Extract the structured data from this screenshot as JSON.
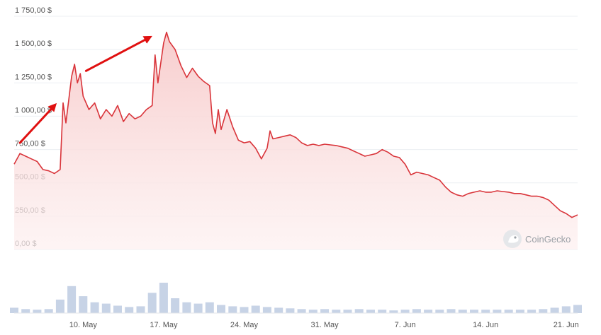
{
  "chart_data": {
    "type": "line",
    "title": "",
    "xlabel": "",
    "ylabel": "",
    "x_range_days": [
      "2021-05-04",
      "2021-06-22"
    ],
    "ylim": [
      0,
      1750
    ],
    "y_ticks": [
      0,
      250,
      500,
      750,
      1000,
      1250,
      1500,
      1750
    ],
    "y_tick_labels": [
      "0,00 $",
      "250,00 $",
      "500,00 $",
      "750,00 $",
      "1 000,00 $",
      "1 250,00 $",
      "1 500,00 $",
      "1 750,00 $"
    ],
    "x_ticks": [
      "2021-05-10",
      "2021-05-17",
      "2021-05-24",
      "2021-05-31",
      "2021-06-07",
      "2021-06-14",
      "2021-06-21"
    ],
    "x_tick_labels": [
      "10. May",
      "17. May",
      "24. May",
      "31. May",
      "7. Jun",
      "14. Jun",
      "21. Jun"
    ],
    "grid": true,
    "line_color": "#d9343a",
    "fill_color": "#f9dcdc",
    "volume_color": "#c7d3e6",
    "series": [
      {
        "values": [
          [
            "2021-05-04",
            640
          ],
          [
            "2021-05-04 12:00",
            720
          ],
          [
            "2021-05-05",
            700
          ],
          [
            "2021-05-05 12:00",
            680
          ],
          [
            "2021-05-06",
            660
          ],
          [
            "2021-05-06 12:00",
            600
          ],
          [
            "2021-05-07",
            590
          ],
          [
            "2021-05-07 12:00",
            570
          ],
          [
            "2021-05-08",
            600
          ],
          [
            "2021-05-08 06:00",
            1100
          ],
          [
            "2021-05-08 12:00",
            950
          ],
          [
            "2021-05-09",
            1300
          ],
          [
            "2021-05-09 06:00",
            1390
          ],
          [
            "2021-05-09 12:00",
            1250
          ],
          [
            "2021-05-09 18:00",
            1320
          ],
          [
            "2021-05-10",
            1150
          ],
          [
            "2021-05-10 12:00",
            1050
          ],
          [
            "2021-05-11",
            1100
          ],
          [
            "2021-05-11 12:00",
            980
          ],
          [
            "2021-05-12",
            1050
          ],
          [
            "2021-05-12 12:00",
            1000
          ],
          [
            "2021-05-13",
            1080
          ],
          [
            "2021-05-13 12:00",
            960
          ],
          [
            "2021-05-14",
            1020
          ],
          [
            "2021-05-14 12:00",
            980
          ],
          [
            "2021-05-15",
            1000
          ],
          [
            "2021-05-15 12:00",
            1050
          ],
          [
            "2021-05-16",
            1080
          ],
          [
            "2021-05-16 06:00",
            1460
          ],
          [
            "2021-05-16 12:00",
            1250
          ],
          [
            "2021-05-17",
            1550
          ],
          [
            "2021-05-17 06:00",
            1630
          ],
          [
            "2021-05-17 12:00",
            1560
          ],
          [
            "2021-05-18",
            1500
          ],
          [
            "2021-05-18 12:00",
            1380
          ],
          [
            "2021-05-19",
            1290
          ],
          [
            "2021-05-19 12:00",
            1360
          ],
          [
            "2021-05-20",
            1300
          ],
          [
            "2021-05-20 12:00",
            1260
          ],
          [
            "2021-05-21",
            1230
          ],
          [
            "2021-05-21 06:00",
            950
          ],
          [
            "2021-05-21 12:00",
            870
          ],
          [
            "2021-05-21 18:00",
            1050
          ],
          [
            "2021-05-22",
            900
          ],
          [
            "2021-05-22 12:00",
            1050
          ],
          [
            "2021-05-23",
            920
          ],
          [
            "2021-05-23 12:00",
            820
          ],
          [
            "2021-05-24",
            800
          ],
          [
            "2021-05-24 12:00",
            810
          ],
          [
            "2021-05-25",
            760
          ],
          [
            "2021-05-25 12:00",
            680
          ],
          [
            "2021-05-26",
            760
          ],
          [
            "2021-05-26 06:00",
            890
          ],
          [
            "2021-05-26 12:00",
            830
          ],
          [
            "2021-05-27",
            840
          ],
          [
            "2021-05-27 12:00",
            850
          ],
          [
            "2021-05-28",
            860
          ],
          [
            "2021-05-28 12:00",
            840
          ],
          [
            "2021-05-29",
            800
          ],
          [
            "2021-05-29 12:00",
            780
          ],
          [
            "2021-05-30",
            790
          ],
          [
            "2021-05-30 12:00",
            780
          ],
          [
            "2021-05-31",
            790
          ],
          [
            "2021-05-31 12:00",
            785
          ],
          [
            "2021-06-01",
            780
          ],
          [
            "2021-06-01 12:00",
            770
          ],
          [
            "2021-06-02",
            760
          ],
          [
            "2021-06-02 12:00",
            740
          ],
          [
            "2021-06-03",
            720
          ],
          [
            "2021-06-03 12:00",
            700
          ],
          [
            "2021-06-04",
            710
          ],
          [
            "2021-06-04 12:00",
            720
          ],
          [
            "2021-06-05",
            750
          ],
          [
            "2021-06-05 12:00",
            730
          ],
          [
            "2021-06-06",
            700
          ],
          [
            "2021-06-06 12:00",
            690
          ],
          [
            "2021-06-07",
            640
          ],
          [
            "2021-06-07 12:00",
            560
          ],
          [
            "2021-06-08",
            580
          ],
          [
            "2021-06-08 12:00",
            570
          ],
          [
            "2021-06-09",
            560
          ],
          [
            "2021-06-09 12:00",
            540
          ],
          [
            "2021-06-10",
            520
          ],
          [
            "2021-06-10 12:00",
            470
          ],
          [
            "2021-06-11",
            430
          ],
          [
            "2021-06-11 12:00",
            410
          ],
          [
            "2021-06-12",
            400
          ],
          [
            "2021-06-12 12:00",
            420
          ],
          [
            "2021-06-13",
            430
          ],
          [
            "2021-06-13 12:00",
            440
          ],
          [
            "2021-06-14",
            430
          ],
          [
            "2021-06-14 12:00",
            430
          ],
          [
            "2021-06-15",
            440
          ],
          [
            "2021-06-15 12:00",
            435
          ],
          [
            "2021-06-16",
            430
          ],
          [
            "2021-06-16 12:00",
            420
          ],
          [
            "2021-06-17",
            420
          ],
          [
            "2021-06-17 12:00",
            410
          ],
          [
            "2021-06-18",
            400
          ],
          [
            "2021-06-18 12:00",
            400
          ],
          [
            "2021-06-19",
            390
          ],
          [
            "2021-06-19 12:00",
            370
          ],
          [
            "2021-06-20",
            330
          ],
          [
            "2021-06-20 12:00",
            290
          ],
          [
            "2021-06-21",
            270
          ],
          [
            "2021-06-21 12:00",
            240
          ],
          [
            "2021-06-22",
            260
          ]
        ]
      }
    ],
    "volume": {
      "values": [
        [
          "2021-05-04",
          8
        ],
        [
          "2021-05-05",
          6
        ],
        [
          "2021-05-06",
          5
        ],
        [
          "2021-05-07",
          6
        ],
        [
          "2021-05-08",
          20
        ],
        [
          "2021-05-09",
          40
        ],
        [
          "2021-05-10",
          25
        ],
        [
          "2021-05-11",
          16
        ],
        [
          "2021-05-12",
          14
        ],
        [
          "2021-05-13",
          11
        ],
        [
          "2021-05-14",
          9
        ],
        [
          "2021-05-15",
          10
        ],
        [
          "2021-05-16",
          30
        ],
        [
          "2021-05-17",
          45
        ],
        [
          "2021-05-18",
          22
        ],
        [
          "2021-05-19",
          16
        ],
        [
          "2021-05-20",
          14
        ],
        [
          "2021-05-21",
          16
        ],
        [
          "2021-05-22",
          12
        ],
        [
          "2021-05-23",
          10
        ],
        [
          "2021-05-24",
          9
        ],
        [
          "2021-05-25",
          11
        ],
        [
          "2021-05-26",
          9
        ],
        [
          "2021-05-27",
          8
        ],
        [
          "2021-05-28",
          7
        ],
        [
          "2021-05-29",
          6
        ],
        [
          "2021-05-30",
          5
        ],
        [
          "2021-05-31",
          6
        ],
        [
          "2021-06-01",
          5
        ],
        [
          "2021-06-02",
          5
        ],
        [
          "2021-06-03",
          6
        ],
        [
          "2021-06-04",
          5
        ],
        [
          "2021-06-05",
          5
        ],
        [
          "2021-06-06",
          4
        ],
        [
          "2021-06-07",
          5
        ],
        [
          "2021-06-08",
          6
        ],
        [
          "2021-06-09",
          5
        ],
        [
          "2021-06-10",
          5
        ],
        [
          "2021-06-11",
          6
        ],
        [
          "2021-06-12",
          5
        ],
        [
          "2021-06-13",
          5
        ],
        [
          "2021-06-14",
          5
        ],
        [
          "2021-06-15",
          5
        ],
        [
          "2021-06-16",
          5
        ],
        [
          "2021-06-17",
          5
        ],
        [
          "2021-06-18",
          5
        ],
        [
          "2021-06-19",
          6
        ],
        [
          "2021-06-20",
          8
        ],
        [
          "2021-06-21",
          10
        ],
        [
          "2021-06-22",
          12
        ]
      ]
    },
    "annotations": [
      {
        "type": "arrow",
        "from": [
          "2021-05-04 12:00",
          800
        ],
        "to": [
          "2021-05-07 12:00",
          1080
        ],
        "color": "#e01010"
      },
      {
        "type": "arrow",
        "from": [
          "2021-05-10 06:00",
          1340
        ],
        "to": [
          "2021-05-15 18:00",
          1590
        ],
        "color": "#e01010"
      }
    ]
  },
  "watermark": {
    "text": "CoinGecko",
    "icon": "gecko-icon"
  }
}
